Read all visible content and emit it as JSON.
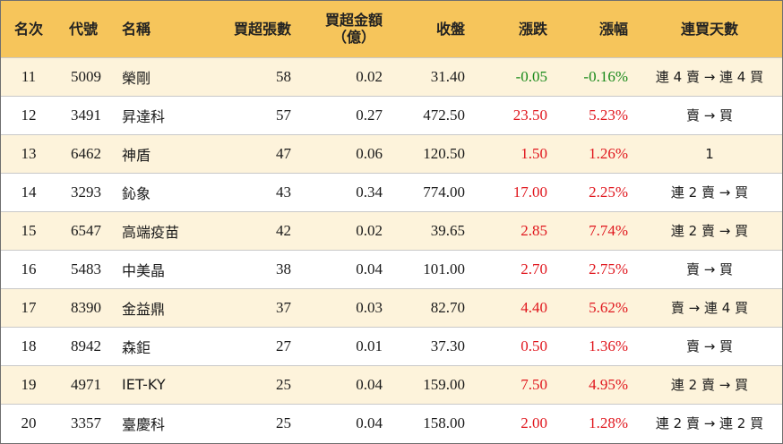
{
  "headers": {
    "rank": "名次",
    "code": "代號",
    "name": "名稱",
    "net_lots": "買超張數",
    "net_amount_line1": "買超金額",
    "net_amount_line2": "（億）",
    "close": "收盤",
    "change": "漲跌",
    "pct": "漲幅",
    "days": "連買天數"
  },
  "colors": {
    "header_bg": "#f6c55b",
    "row_alt_bg": "#fdf3db",
    "up": "#e0161d",
    "down": "#1a8a1a"
  },
  "rows": [
    {
      "rank": "11",
      "code": "5009",
      "name": "榮剛",
      "net_lots": "58",
      "net_amount": "0.02",
      "close": "31.40",
      "change": "-0.05",
      "pct": "-0.16%",
      "days": "連 4 賣 → 連 4 買",
      "dir": "down"
    },
    {
      "rank": "12",
      "code": "3491",
      "name": "昇達科",
      "net_lots": "57",
      "net_amount": "0.27",
      "close": "472.50",
      "change": "23.50",
      "pct": "5.23%",
      "days": "賣 → 買",
      "dir": "up"
    },
    {
      "rank": "13",
      "code": "6462",
      "name": "神盾",
      "net_lots": "47",
      "net_amount": "0.06",
      "close": "120.50",
      "change": "1.50",
      "pct": "1.26%",
      "days": "1",
      "dir": "up"
    },
    {
      "rank": "14",
      "code": "3293",
      "name": "鈊象",
      "net_lots": "43",
      "net_amount": "0.34",
      "close": "774.00",
      "change": "17.00",
      "pct": "2.25%",
      "days": "連 2 賣 → 買",
      "dir": "up"
    },
    {
      "rank": "15",
      "code": "6547",
      "name": "高端疫苗",
      "net_lots": "42",
      "net_amount": "0.02",
      "close": "39.65",
      "change": "2.85",
      "pct": "7.74%",
      "days": "連 2 賣 → 買",
      "dir": "up"
    },
    {
      "rank": "16",
      "code": "5483",
      "name": "中美晶",
      "net_lots": "38",
      "net_amount": "0.04",
      "close": "101.00",
      "change": "2.70",
      "pct": "2.75%",
      "days": "賣 → 買",
      "dir": "up"
    },
    {
      "rank": "17",
      "code": "8390",
      "name": "金益鼎",
      "net_lots": "37",
      "net_amount": "0.03",
      "close": "82.70",
      "change": "4.40",
      "pct": "5.62%",
      "days": "賣 → 連 4 買",
      "dir": "up"
    },
    {
      "rank": "18",
      "code": "8942",
      "name": "森鉅",
      "net_lots": "27",
      "net_amount": "0.01",
      "close": "37.30",
      "change": "0.50",
      "pct": "1.36%",
      "days": "賣 → 買",
      "dir": "up"
    },
    {
      "rank": "19",
      "code": "4971",
      "name": "IET-KY",
      "net_lots": "25",
      "net_amount": "0.04",
      "close": "159.00",
      "change": "7.50",
      "pct": "4.95%",
      "days": "連 2 賣 → 買",
      "dir": "up"
    },
    {
      "rank": "20",
      "code": "3357",
      "name": "臺慶科",
      "net_lots": "25",
      "net_amount": "0.04",
      "close": "158.00",
      "change": "2.00",
      "pct": "1.28%",
      "days": "連 2 賣 → 連 2 買",
      "dir": "up"
    }
  ]
}
